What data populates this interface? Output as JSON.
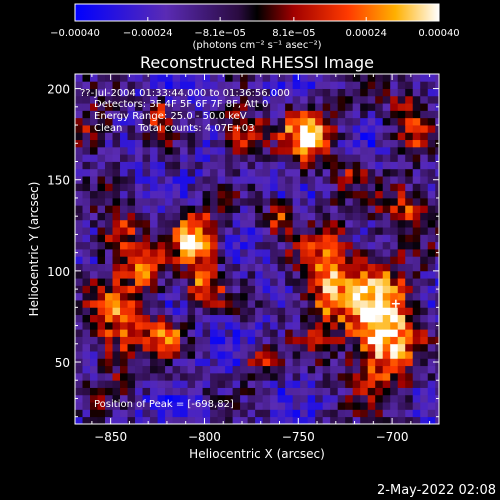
{
  "chart_data": {
    "type": "heatmap",
    "title": "Reconstructed RHESSI Image",
    "xlabel": "Heliocentric X (arcsec)",
    "ylabel": "Heliocentric Y (arcsec)",
    "xlim": [
      -869,
      -675
    ],
    "ylim": [
      16,
      208
    ],
    "x_ticks": [
      {
        "value": -850,
        "label": "−850"
      },
      {
        "value": -800,
        "label": "−800"
      },
      {
        "value": -750,
        "label": "−750"
      },
      {
        "value": -700,
        "label": "−700"
      }
    ],
    "y_ticks": [
      {
        "value": 50,
        "label": "50"
      },
      {
        "value": 100,
        "label": "100"
      },
      {
        "value": 150,
        "label": "150"
      },
      {
        "value": 200,
        "label": "200"
      }
    ],
    "colorbar": {
      "range": [
        -0.0004,
        0.0004
      ],
      "unit_label": "(photons cm⁻² s⁻¹ asec⁻²)",
      "ticks": [
        {
          "value": -0.0004,
          "label": "−0.00040"
        },
        {
          "value": -0.00024,
          "label": "−0.00024"
        },
        {
          "value": -8.1e-05,
          "label": "−8.1e−05"
        },
        {
          "value": 8.1e-05,
          "label": "8.1e−05"
        },
        {
          "value": 0.00024,
          "label": "0.00024"
        },
        {
          "value": 0.0004,
          "label": "0.00040"
        }
      ]
    },
    "annotations": {
      "time_range": "??-Jul-2004 01:33:44.000 to 01:36:56.000",
      "detectors": "Detectors: 3F 4F 5F 6F 7F 8F, Att 0",
      "energy_range": "Energy Range: 25.0 - 50.0 keV",
      "method_and_counts": "Clean     Total counts: 4.07E+03",
      "peak_position": "Position of Peak = [-698,82]"
    },
    "peak": {
      "x": -698,
      "y": 82
    },
    "bright_sources": [
      {
        "x": -705,
        "y": 70,
        "sx": 12,
        "sy": 24,
        "amp": 1.0
      },
      {
        "x": -805,
        "y": 118,
        "sx": 9,
        "sy": 11,
        "amp": 0.85
      },
      {
        "x": -745,
        "y": 175,
        "sx": 10,
        "sy": 11,
        "amp": 0.8
      },
      {
        "x": -780,
        "y": 175,
        "sx": 8,
        "sy": 9,
        "amp": 0.65
      },
      {
        "x": -735,
        "y": 95,
        "sx": 11,
        "sy": 22,
        "amp": 0.7
      },
      {
        "x": -845,
        "y": 70,
        "sx": 12,
        "sy": 20,
        "amp": 0.6
      },
      {
        "x": -845,
        "y": 120,
        "sx": 8,
        "sy": 10,
        "amp": 0.55
      },
      {
        "x": -800,
        "y": 90,
        "sx": 7,
        "sy": 8,
        "amp": 0.6
      },
      {
        "x": -820,
        "y": 65,
        "sx": 6,
        "sy": 6,
        "amp": 0.6
      },
      {
        "x": -760,
        "y": 130,
        "sx": 6,
        "sy": 6,
        "amp": 0.5
      },
      {
        "x": -690,
        "y": 135,
        "sx": 10,
        "sy": 9,
        "amp": 0.55
      },
      {
        "x": -690,
        "y": 185,
        "sx": 8,
        "sy": 15,
        "amp": 0.5
      },
      {
        "x": -825,
        "y": 185,
        "sx": 6,
        "sy": 7,
        "amp": 0.55
      },
      {
        "x": -830,
        "y": 100,
        "sx": 7,
        "sy": 7,
        "amp": 0.5
      },
      {
        "x": -770,
        "y": 50,
        "sx": 6,
        "sy": 6,
        "amp": 0.45
      },
      {
        "x": -720,
        "y": 155,
        "sx": 6,
        "sy": 6,
        "amp": 0.45
      },
      {
        "x": -860,
        "y": 175,
        "sx": 8,
        "sy": 10,
        "amp": 0.45
      }
    ]
  },
  "footer": {
    "date": "2-May-2022 02:08"
  }
}
